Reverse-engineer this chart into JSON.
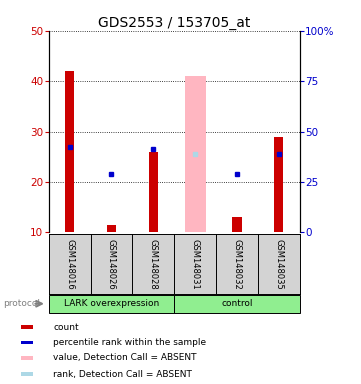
{
  "title": "GDS2553 / 153705_at",
  "samples": [
    "GSM148016",
    "GSM148026",
    "GSM148028",
    "GSM148031",
    "GSM148032",
    "GSM148035"
  ],
  "red_bars_top": [
    42,
    11.5,
    26,
    null,
    13,
    29
  ],
  "pink_bars_top": [
    null,
    null,
    null,
    41,
    null,
    null
  ],
  "blue_squares_y": [
    27,
    21.5,
    26.5,
    null,
    21.5,
    25.5
  ],
  "light_blue_squares_y": [
    null,
    null,
    null,
    25.5,
    null,
    null
  ],
  "bar_bottom": 10,
  "ylim_left": [
    10,
    50
  ],
  "ylim_right": [
    0,
    100
  ],
  "yticks_left": [
    10,
    20,
    30,
    40,
    50
  ],
  "yticks_right": [
    0,
    25,
    50,
    75,
    100
  ],
  "ytick_labels_right": [
    "0",
    "25",
    "50",
    "75",
    "100%"
  ],
  "group_labels": [
    "LARK overexpression",
    "control"
  ],
  "group_splits": [
    3
  ],
  "protocol_label": "protocol",
  "legend_items": [
    {
      "color": "#CC0000",
      "label": "count"
    },
    {
      "color": "#0000CC",
      "label": "percentile rank within the sample"
    },
    {
      "color": "#FFB6C1",
      "label": "value, Detection Call = ABSENT"
    },
    {
      "color": "#ADD8E6",
      "label": "rank, Detection Call = ABSENT"
    }
  ],
  "bar_color": "#CC0000",
  "pink_color": "#FFB6C1",
  "blue_color": "#0000CC",
  "light_blue_color": "#ADD8E6",
  "title_fontsize": 10,
  "tick_color_left": "#CC0000",
  "tick_color_right": "#0000CC",
  "sample_bg": "#D3D3D3",
  "group_color": "#90EE90"
}
